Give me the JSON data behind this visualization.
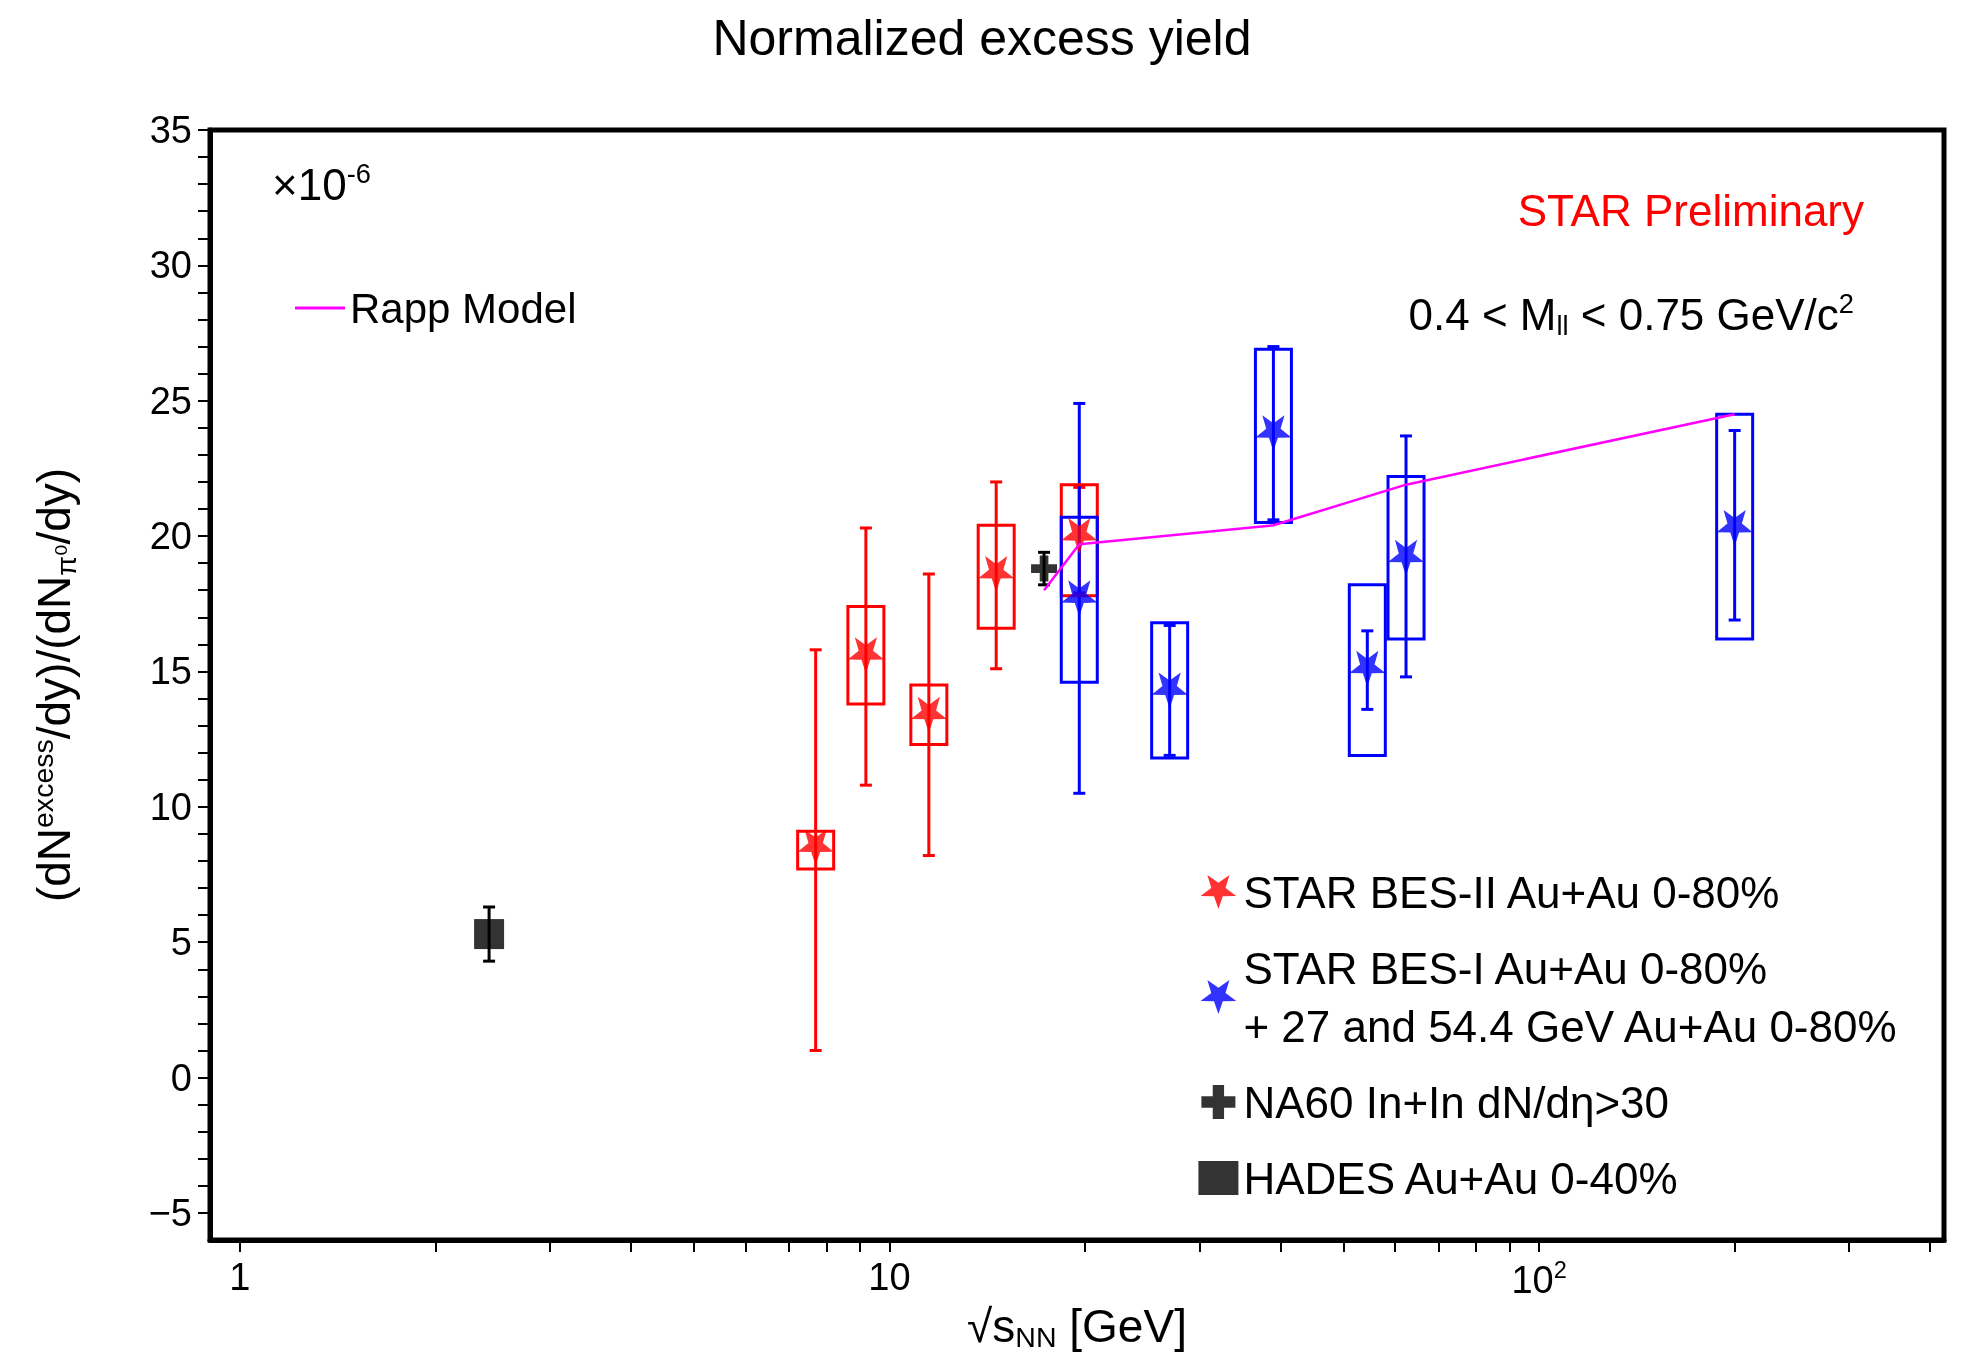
{
  "chart_data": {
    "type": "scatter",
    "title": "Normalized excess yield",
    "xlabel": "√s$_{NN}$ [GeV]",
    "ylabel": "(dN$^{excess}$/dy)/(dN$_{π⁰}$/dy)",
    "annotations": [
      "×10$^{-6}$",
      "STAR Preliminary",
      "0.4 < M$_{ll}$ < 0.75 GeV/c$^{2}$"
    ],
    "log": "x",
    "xlim": [
      0.9,
      420
    ],
    "xticks": [
      1,
      {
        "value": 2,
        "label": null
      },
      {
        "value": 3,
        "label": null
      },
      {
        "value": 4,
        "label": null
      },
      {
        "value": 5,
        "label": null
      },
      {
        "value": 6,
        "label": null
      },
      {
        "value": 7,
        "label": null
      },
      {
        "value": 8,
        "label": null
      },
      {
        "value": 9,
        "label": null
      },
      10,
      {
        "value": 20,
        "label": null
      },
      {
        "value": 30,
        "label": null
      },
      {
        "value": 40,
        "label": null
      },
      {
        "value": 50,
        "label": null
      },
      {
        "value": 60,
        "label": null
      },
      {
        "value": 70,
        "label": null
      },
      {
        "value": 80,
        "label": null
      },
      {
        "value": 90,
        "label": null
      },
      {
        "value": 100,
        "label": "10$^{2}$"
      },
      {
        "value": 200,
        "label": null
      },
      {
        "value": 300,
        "label": null
      },
      {
        "value": 400,
        "label": null
      }
    ],
    "ylim": [
      -6,
      35
    ],
    "yticks": [
      {
        "value": -5,
        "label": "−5"
      },
      {
        "value": -4,
        "label": null
      },
      {
        "value": -3,
        "label": null
      },
      {
        "value": -2,
        "label": null
      },
      {
        "value": -1,
        "label": null
      },
      0,
      {
        "value": 1,
        "label": null
      },
      {
        "value": 2,
        "label": null
      },
      {
        "value": 3,
        "label": null
      },
      {
        "value": 4,
        "label": null
      },
      5,
      {
        "value": 6,
        "label": null
      },
      {
        "value": 7,
        "label": null
      },
      {
        "value": 8,
        "label": null
      },
      {
        "value": 9,
        "label": null
      },
      10,
      {
        "value": 11,
        "label": null
      },
      {
        "value": 12,
        "label": null
      },
      {
        "value": 13,
        "label": null
      },
      {
        "value": 14,
        "label": null
      },
      15,
      {
        "value": 16,
        "label": null
      },
      {
        "value": 17,
        "label": null
      },
      {
        "value": 18,
        "label": null
      },
      {
        "value": 19,
        "label": null
      },
      20,
      {
        "value": 21,
        "label": null
      },
      {
        "value": 22,
        "label": null
      },
      {
        "value": 23,
        "label": null
      },
      {
        "value": 24,
        "label": null
      },
      25,
      {
        "value": 26,
        "label": null
      },
      {
        "value": 27,
        "label": null
      },
      {
        "value": 28,
        "label": null
      },
      {
        "value": 29,
        "label": null
      },
      30,
      {
        "value": 31,
        "label": null
      },
      {
        "value": 32,
        "label": null
      },
      {
        "value": 33,
        "label": null
      },
      {
        "value": 34,
        "label": null
      },
      35
    ],
    "legend": "bottom right",
    "series": [
      {
        "name": "Rapp Model",
        "type": "line",
        "color": "#ff00ff",
        "marker": "none",
        "x": [
          17.3,
          19.6,
          39,
          62.4,
          200
        ],
        "values": [
          18.0,
          19.7,
          20.4,
          21.9,
          24.5
        ]
      },
      {
        "name": "STAR BES-II Au+Au 0-80%",
        "color": "#ff0000",
        "marker": "star",
        "x": [
          7.7,
          9.2,
          11.5,
          14.6,
          19.6
        ],
        "values": [
          8.5,
          15.6,
          13.4,
          18.6,
          20.0
        ],
        "errors": [
          [
            1.0,
            15.8
          ],
          [
            10.8,
            20.3
          ],
          [
            8.2,
            18.6
          ],
          [
            15.1,
            22.0
          ],
          [
            17.9,
            21.8
          ]
        ]
      },
      {
        "type": "bar",
        "color": "#ff0000",
        "x": [
          7.7,
          9.2,
          11.5,
          14.6,
          19.6
        ],
        "base": [
          7.7,
          13.8,
          12.3,
          16.6,
          17.8
        ],
        "values": [
          1.4,
          3.6,
          2.2,
          3.8,
          4.1
        ]
      },
      {
        "name": "STAR BES-I Au+Au 0-80%\n+ 27 and 54.4 GeV Au+Au 0-80%",
        "type": "scatter",
        "color": "#0000ff",
        "marker": "star",
        "x": [
          19.6,
          27,
          39,
          54.4,
          62.4,
          200
        ],
        "values": [
          17.7,
          14.3,
          23.8,
          15.1,
          19.2,
          20.3
        ],
        "errors": [
          [
            10.5,
            24.9
          ],
          [
            11.9,
            16.7
          ],
          [
            20.6,
            27.0
          ],
          [
            13.6,
            16.5
          ],
          [
            14.8,
            23.7
          ],
          [
            16.9,
            23.9
          ]
        ]
      },
      {
        "type": "bar",
        "color": "#0000ff",
        "x": [
          19.6,
          27,
          39,
          54.4,
          62.4,
          200
        ],
        "base": [
          14.6,
          11.8,
          20.5,
          11.9,
          16.2,
          16.2
        ],
        "values": [
          6.1,
          5.0,
          6.4,
          6.3,
          6.0,
          8.3
        ]
      },
      {
        "name": "NA60 In+In dN/dη>30",
        "type": "scatter",
        "color": "#000000",
        "marker": "cross",
        "x": [
          17.3
        ],
        "values": [
          18.8
        ],
        "errors": [
          [
            18.2,
            19.4
          ]
        ]
      },
      {
        "name": "HADES Au+Au 0-40%",
        "type": "scatter",
        "color": "#000000",
        "marker": "square",
        "x": [
          2.42
        ],
        "values": [
          5.3
        ],
        "errors": [
          [
            4.3,
            6.3
          ]
        ]
      }
    ]
  }
}
